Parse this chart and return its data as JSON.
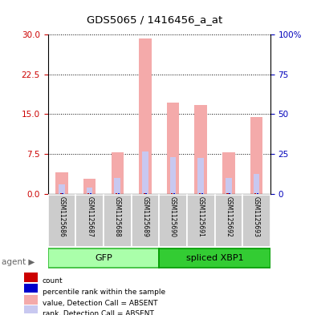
{
  "title": "GDS5065 / 1416456_a_at",
  "samples": [
    "GSM1125686",
    "GSM1125687",
    "GSM1125688",
    "GSM1125689",
    "GSM1125690",
    "GSM1125691",
    "GSM1125692",
    "GSM1125693"
  ],
  "absent_value": [
    4.0,
    2.8,
    7.8,
    29.3,
    17.2,
    16.8,
    7.8,
    14.5
  ],
  "absent_rank": [
    1.8,
    1.2,
    3.0,
    8.0,
    6.9,
    6.8,
    3.0,
    3.8
  ],
  "ylim_left": [
    0,
    30
  ],
  "ylim_right": [
    0,
    100
  ],
  "yticks_left": [
    0,
    7.5,
    15,
    22.5,
    30
  ],
  "yticks_right": [
    0,
    25,
    50,
    75,
    100
  ],
  "color_absent_value": "#F4AAAA",
  "color_absent_rank": "#C8C8F0",
  "color_count": "#CC0000",
  "color_percentile": "#0000CC",
  "background_color": "#FFFFFF",
  "grid_color": "#000000",
  "tick_color_left": "#CC0000",
  "tick_color_right": "#0000BB",
  "bar_width": 0.45,
  "rank_bar_width": 0.22,
  "gfp_color": "#AAFFAA",
  "gfp_border": "#33BB33",
  "xbp1_color": "#33CC33",
  "xbp1_border": "#009900",
  "sample_box_color": "#CCCCCC",
  "legend_items": [
    {
      "label": "count",
      "color": "#CC0000"
    },
    {
      "label": "percentile rank within the sample",
      "color": "#0000CC"
    },
    {
      "label": "value, Detection Call = ABSENT",
      "color": "#F4AAAA"
    },
    {
      "label": "rank, Detection Call = ABSENT",
      "color": "#C8C8F0"
    }
  ]
}
